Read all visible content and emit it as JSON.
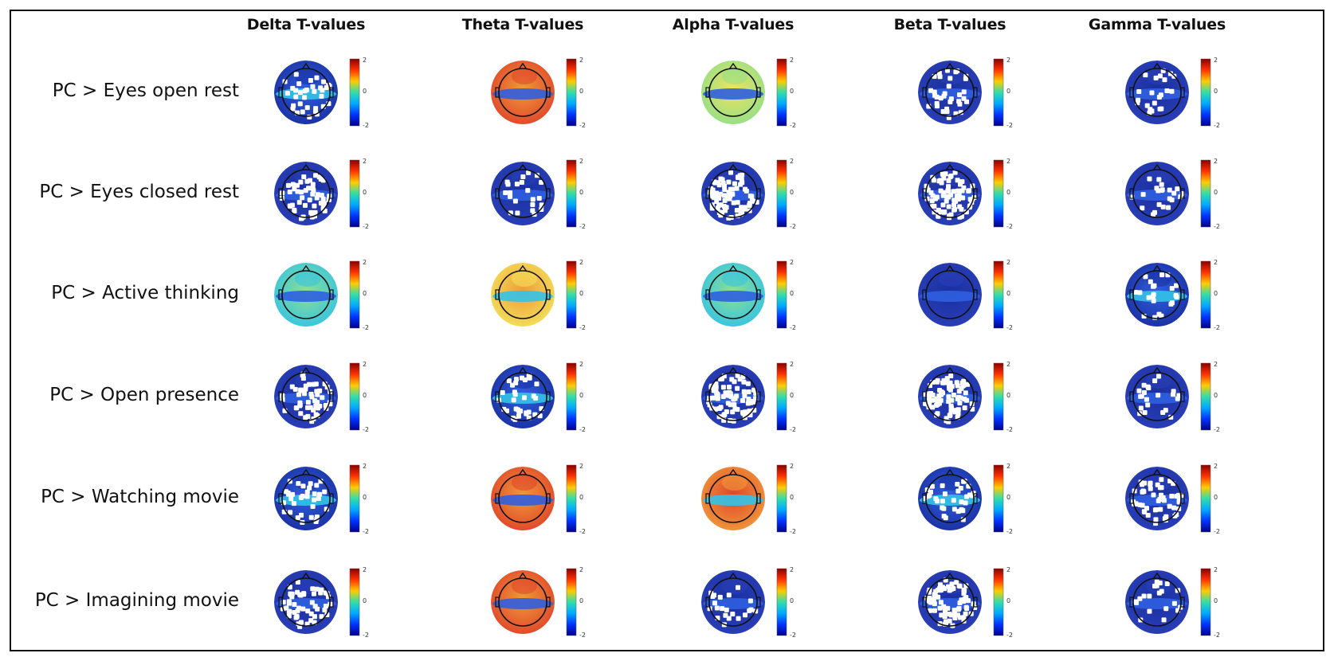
{
  "columns": [
    {
      "label": "Delta T-values",
      "key": "delta"
    },
    {
      "label": "Theta T-values",
      "key": "theta"
    },
    {
      "label": "Alpha T-values",
      "key": "alpha"
    },
    {
      "label": "Beta T-values",
      "key": "beta"
    },
    {
      "label": "Gamma T-values",
      "key": "gamma"
    }
  ],
  "rows": [
    {
      "label": "PC > Eyes open rest",
      "maps": [
        {
          "style": "blue-mid",
          "electrodes": "partial"
        },
        {
          "style": "red-orange",
          "electrodes": "none"
        },
        {
          "style": "yellow-green",
          "electrodes": "none"
        },
        {
          "style": "deep-blue",
          "electrodes": "partial"
        },
        {
          "style": "deep-blue",
          "electrodes": "few"
        }
      ]
    },
    {
      "label": "PC > Eyes closed rest",
      "maps": [
        {
          "style": "deep-blue",
          "electrodes": "many"
        },
        {
          "style": "deep-blue",
          "electrodes": "few"
        },
        {
          "style": "deep-blue",
          "electrodes": "dense"
        },
        {
          "style": "deep-blue",
          "electrodes": "dense"
        },
        {
          "style": "deep-blue",
          "electrodes": "few"
        }
      ]
    },
    {
      "label": "PC > Active thinking",
      "maps": [
        {
          "style": "green-band",
          "electrodes": "none"
        },
        {
          "style": "orange-yellow",
          "electrodes": "none"
        },
        {
          "style": "green-band",
          "electrodes": "none"
        },
        {
          "style": "deep-blue",
          "electrodes": "none"
        },
        {
          "style": "blue-mid",
          "electrodes": "few"
        }
      ]
    },
    {
      "label": "PC > Open presence",
      "maps": [
        {
          "style": "deep-blue",
          "electrodes": "many"
        },
        {
          "style": "blue-mid",
          "electrodes": "partial"
        },
        {
          "style": "deep-blue",
          "electrodes": "dense"
        },
        {
          "style": "deep-blue",
          "electrodes": "dense"
        },
        {
          "style": "deep-blue",
          "electrodes": "few"
        }
      ]
    },
    {
      "label": "PC > Watching movie",
      "maps": [
        {
          "style": "blue-mid",
          "electrodes": "partial"
        },
        {
          "style": "red-orange",
          "electrodes": "none"
        },
        {
          "style": "red",
          "electrodes": "none"
        },
        {
          "style": "blue-mid",
          "electrodes": "partial"
        },
        {
          "style": "deep-blue",
          "electrodes": "many"
        }
      ]
    },
    {
      "label": "PC > Imagining movie",
      "maps": [
        {
          "style": "deep-blue",
          "electrodes": "many"
        },
        {
          "style": "red-orange",
          "electrodes": "none"
        },
        {
          "style": "deep-blue",
          "electrodes": "few"
        },
        {
          "style": "deep-blue",
          "electrodes": "dense"
        },
        {
          "style": "deep-blue",
          "electrodes": "few"
        }
      ]
    }
  ],
  "colorbar": {
    "ticks": [
      "2",
      "0",
      "-2"
    ],
    "colors": [
      "#8b0000",
      "#ff3300",
      "#ffcc00",
      "#33ddaa",
      "#00aaff",
      "#0033ff",
      "#00008b"
    ]
  },
  "palette": {
    "deep_blue": "#1a2fa0",
    "blue": "#2f5fe0",
    "cyan": "#33c3e8",
    "green": "#8fe08a",
    "yellow": "#f3e25a",
    "orange": "#f09a3a",
    "red": "#e0442a",
    "electrode": "#ffffff",
    "head_outline": "#111111"
  }
}
